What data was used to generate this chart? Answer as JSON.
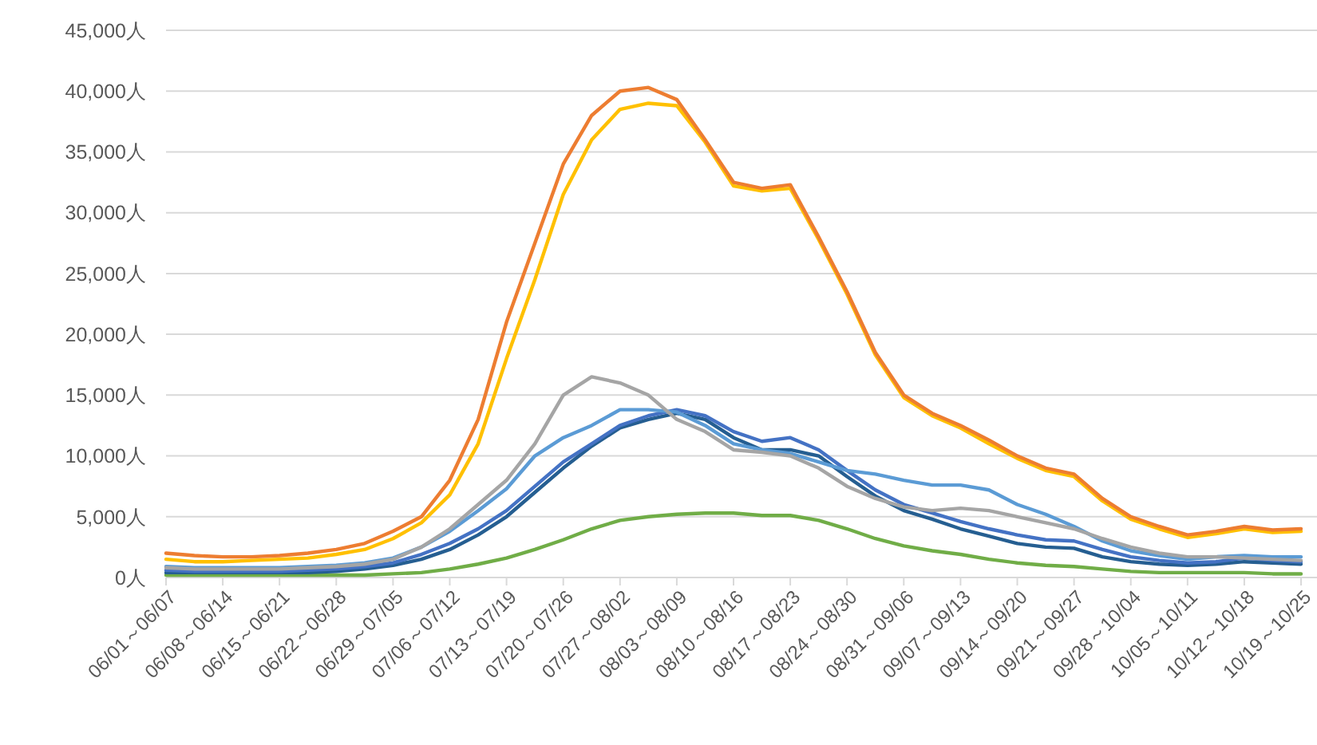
{
  "chart_data": {
    "type": "line",
    "grid": "y",
    "marker": "none",
    "line_style": "solid",
    "categories": [
      "06/01～06/07",
      null,
      "06/08～06/14",
      null,
      "06/15～06/21",
      null,
      "06/22～06/28",
      null,
      "06/29～07/05",
      null,
      "07/06～07/12",
      null,
      "07/13～07/19",
      null,
      "07/20～07/26",
      null,
      "07/27～08/02",
      null,
      "08/03～08/09",
      null,
      "08/10～08/16",
      null,
      "08/17～08/23",
      null,
      "08/24～08/30",
      null,
      "08/31～09/06",
      null,
      "09/07～09/13",
      null,
      "09/14～09/20",
      null,
      "09/21～09/27",
      null,
      "09/28～10/04",
      null,
      "10/05～10/11",
      null,
      "10/12～10/18",
      null,
      "10/19～10/25"
    ],
    "ylim": [
      0,
      45000
    ],
    "yticks": [
      {
        "value": 0,
        "label": "0人"
      },
      {
        "value": 5000,
        "label": "5,000人"
      },
      {
        "value": 10000,
        "label": "10,000人"
      },
      {
        "value": 15000,
        "label": "15,000人"
      },
      {
        "value": 20000,
        "label": "20,000人"
      },
      {
        "value": 25000,
        "label": "25,000人"
      },
      {
        "value": 30000,
        "label": "30,000人"
      },
      {
        "value": 35000,
        "label": "35,000人"
      },
      {
        "value": 40000,
        "label": "40,000人"
      },
      {
        "value": 45000,
        "label": "45,000人"
      }
    ],
    "series": [
      {
        "color": "#70ad47",
        "values": [
          200,
          200,
          200,
          200,
          200,
          200,
          200,
          200,
          300,
          400,
          700,
          1100,
          1600,
          2300,
          3100,
          4000,
          4700,
          5000,
          5200,
          5300,
          5300,
          5100,
          5100,
          4700,
          4000,
          3200,
          2600,
          2200,
          1900,
          1500,
          1200,
          1000,
          900,
          700,
          500,
          400,
          400,
          400,
          400,
          300,
          300
        ]
      },
      {
        "color": "#255e91",
        "values": [
          400,
          400,
          400,
          400,
          400,
          400,
          500,
          700,
          1000,
          1500,
          2300,
          3500,
          5000,
          7000,
          9000,
          10800,
          12300,
          13000,
          13500,
          13000,
          11500,
          10500,
          10500,
          10000,
          8300,
          6700,
          5500,
          4800,
          4000,
          3400,
          2800,
          2500,
          2400,
          1700,
          1300,
          1100,
          1000,
          1100,
          1300,
          1200,
          1100
        ]
      },
      {
        "color": "#4472c4",
        "values": [
          600,
          500,
          500,
          500,
          500,
          600,
          700,
          900,
          1200,
          1900,
          2800,
          4000,
          5500,
          7500,
          9500,
          11000,
          12500,
          13300,
          13800,
          13300,
          12000,
          11200,
          11500,
          10500,
          8800,
          7200,
          6000,
          5300,
          4600,
          4000,
          3500,
          3100,
          3000,
          2300,
          1700,
          1400,
          1200,
          1300,
          1600,
          1400,
          1300
        ]
      },
      {
        "color": "#5b9bd5",
        "values": [
          900,
          800,
          800,
          800,
          800,
          900,
          1000,
          1200,
          1600,
          2500,
          3800,
          5500,
          7300,
          10000,
          11500,
          12500,
          13800,
          13800,
          13600,
          12500,
          11000,
          10500,
          10200,
          9500,
          8800,
          8500,
          8000,
          7600,
          7600,
          7200,
          6000,
          5200,
          4200,
          3000,
          2200,
          1800,
          1500,
          1700,
          1800,
          1700,
          1700
        ]
      },
      {
        "color": "#a5a5a5",
        "values": [
          800,
          700,
          700,
          700,
          700,
          800,
          900,
          1100,
          1500,
          2500,
          4000,
          6000,
          8000,
          11000,
          15000,
          16500,
          16000,
          15000,
          13000,
          12000,
          10500,
          10300,
          10000,
          9000,
          7500,
          6500,
          5800,
          5500,
          5700,
          5500,
          5000,
          4500,
          4000,
          3200,
          2500,
          2000,
          1700,
          1700,
          1600,
          1500,
          1400
        ]
      },
      {
        "color": "#ffc000",
        "values": [
          1500,
          1300,
          1300,
          1400,
          1500,
          1600,
          1900,
          2300,
          3200,
          4500,
          6800,
          11000,
          18000,
          24500,
          31500,
          36000,
          38500,
          39000,
          38800,
          35800,
          32200,
          31800,
          32000,
          27800,
          23300,
          18300,
          14800,
          13300,
          12300,
          11000,
          9800,
          8800,
          8300,
          6300,
          4800,
          4000,
          3300,
          3600,
          4000,
          3700,
          3800
        ]
      },
      {
        "color": "#ed7d31",
        "values": [
          2000,
          1800,
          1700,
          1700,
          1800,
          2000,
          2300,
          2800,
          3800,
          5000,
          8000,
          13000,
          21000,
          27500,
          34000,
          38000,
          40000,
          40300,
          39300,
          36000,
          32500,
          32000,
          32300,
          28000,
          23500,
          18500,
          15000,
          13500,
          12500,
          11300,
          10000,
          9000,
          8500,
          6500,
          5000,
          4200,
          3500,
          3800,
          4200,
          3900,
          4000
        ]
      }
    ]
  }
}
